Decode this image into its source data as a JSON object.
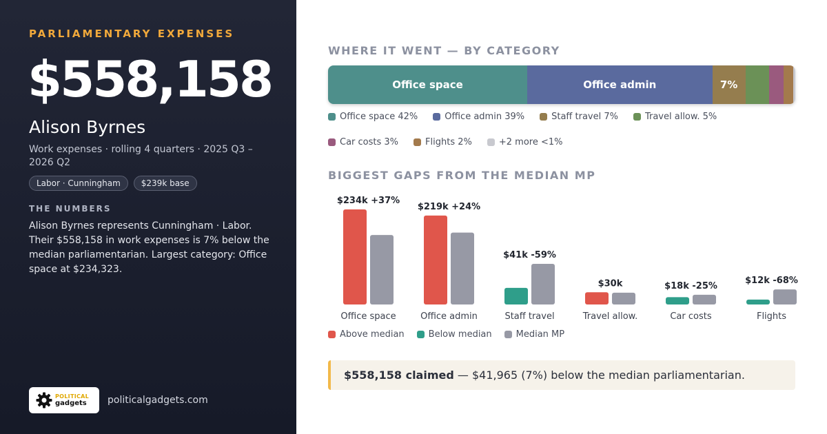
{
  "kicker": "PARLIAMENTARY EXPENSES",
  "total": "$558,158",
  "name": "Alison Byrnes",
  "subtitle": "Work expenses · rolling 4 quarters · 2025 Q3 – 2026 Q2",
  "tags": [
    "Labor · Cunningham",
    "$239k base"
  ],
  "numbers_heading": "THE NUMBERS",
  "numbers_text": "Alison Byrnes represents Cunningham · Labor. Their $558,158 in work expenses is 7% below the median parliamentarian. Largest category: Office space at $234,323.",
  "logo": {
    "line1": "POLITICAL",
    "line2": "gadgets",
    "icon": "gear-icon"
  },
  "site": "politicalgadgets.com",
  "callout": {
    "strong": "$558,158 claimed",
    "rest": " — $41,965 (7%) below the median parliamentarian."
  },
  "chart_data": [
    {
      "type": "bar",
      "orientation": "horizontal-stacked",
      "title": "WHERE IT WENT — BY CATEGORY",
      "series": [
        {
          "name": "Office space",
          "value": 42,
          "label": "Office space",
          "legend": "Office space 42%",
          "color": "#4e8f8b"
        },
        {
          "name": "Office admin",
          "value": 39,
          "label": "Office admin",
          "legend": "Office admin 39%",
          "color": "#5a6a9e"
        },
        {
          "name": "Staff travel",
          "value": 7,
          "label": "7%",
          "legend": "Staff travel 7%",
          "color": "#957d4e"
        },
        {
          "name": "Travel allow.",
          "value": 5,
          "label": "",
          "legend": "Travel allow. 5%",
          "color": "#6b9157"
        },
        {
          "name": "Car costs",
          "value": 3,
          "label": "",
          "legend": "Car costs 3%",
          "color": "#9a5a7e"
        },
        {
          "name": "Flights",
          "value": 2,
          "label": "",
          "legend": "Flights 2%",
          "color": "#a37a4c"
        },
        {
          "name": "+2 more",
          "value": 0.5,
          "label": "",
          "legend": "+2 more <1%",
          "color": "#c8c9cf"
        }
      ]
    },
    {
      "type": "bar",
      "title": "BIGGEST GAPS FROM THE MEDIAN MP",
      "categories": [
        "Office space",
        "Office admin",
        "Staff travel",
        "Travel allow.",
        "Car costs",
        "Flights"
      ],
      "mp_values": [
        234,
        219,
        41,
        30,
        18,
        12
      ],
      "median_values": [
        171,
        177,
        100,
        29,
        24,
        37
      ],
      "status": [
        "above",
        "above",
        "below",
        "above",
        "below",
        "below"
      ],
      "labels": [
        "$234k +37%",
        "$219k +24%",
        "$41k -59%",
        "$30k",
        "$18k -25%",
        "$12k -68%"
      ],
      "legend": [
        {
          "name": "Above median",
          "color": "#e0564b"
        },
        {
          "name": "Below median",
          "color": "#2f9e8a"
        },
        {
          "name": "Median MP",
          "color": "#9799a5"
        }
      ]
    }
  ]
}
